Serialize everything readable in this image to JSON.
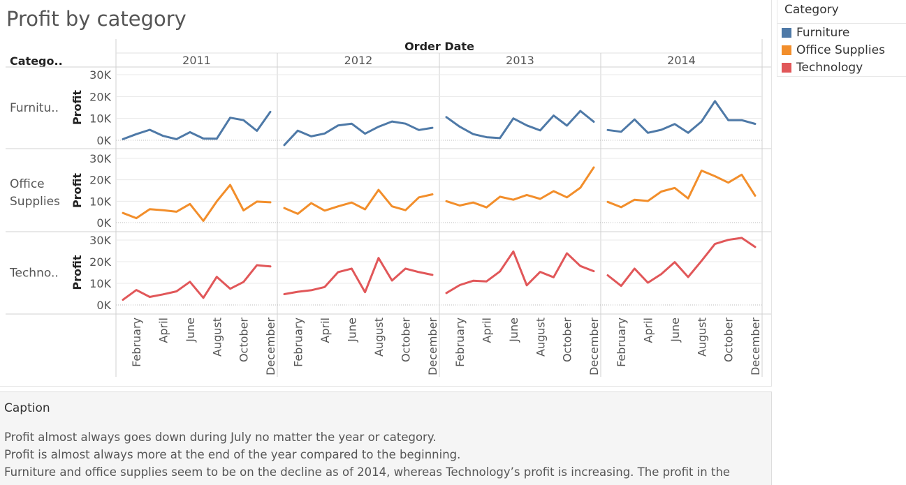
{
  "title": "Profit by category",
  "legend": {
    "title": "Category",
    "items": [
      {
        "label": "Furniture",
        "color": "#4e79a7"
      },
      {
        "label": "Office Supplies",
        "color": "#f28e2b"
      },
      {
        "label": "Technology",
        "color": "#e15759"
      }
    ]
  },
  "caption": {
    "title": "Caption",
    "lines": [
      "Profit almost always goes down during July no matter the year or category.",
      "Profit is almost always more at the end of the year compared to the beginning.",
      "Furniture and office supplies seem to be on the decline as of 2014, whereas Technology’s profit is increasing. The profit in the"
    ]
  },
  "chart_data": {
    "type": "line",
    "title": "Profit by category",
    "column_header": "Order Date",
    "row_header": "Catego..",
    "ylabel": "Profit",
    "ylim": [
      0,
      30000
    ],
    "yticks": [
      "0K",
      "10K",
      "20K",
      "30K"
    ],
    "years": [
      "2011",
      "2012",
      "2013",
      "2014"
    ],
    "months": [
      "January",
      "February",
      "March",
      "April",
      "May",
      "June",
      "July",
      "August",
      "September",
      "October",
      "November",
      "December"
    ],
    "xtick_labels": [
      "February",
      "April",
      "June",
      "August",
      "October",
      "December"
    ],
    "categories": [
      "Furnitu..",
      "Office\nSupplies",
      "Techno.."
    ],
    "series": [
      {
        "name": "Furniture",
        "color": "#4e79a7",
        "values": {
          "2011": [
            500,
            2800,
            4800,
            2000,
            500,
            3700,
            800,
            700,
            10300,
            9200,
            4300,
            13000
          ],
          "2012": [
            -2200,
            4400,
            1800,
            3100,
            6800,
            7600,
            3000,
            6200,
            8600,
            7600,
            4700,
            5700
          ],
          "2013": [
            10600,
            6200,
            2800,
            1400,
            1000,
            10000,
            6800,
            4500,
            11300,
            6700,
            13400,
            8500
          ],
          "2014": [
            4700,
            3900,
            9500,
            3400,
            4800,
            7400,
            3400,
            8600,
            17900,
            9200,
            9200,
            7500
          ]
        }
      },
      {
        "name": "Office Supplies",
        "color": "#f28e2b",
        "values": {
          "2011": [
            4500,
            2100,
            6300,
            5800,
            5100,
            8700,
            800,
            9900,
            17600,
            5700,
            9800,
            9500
          ],
          "2012": [
            6800,
            4100,
            9100,
            5600,
            7600,
            9400,
            6200,
            15300,
            7600,
            5800,
            11800,
            13200
          ],
          "2013": [
            10000,
            8000,
            9400,
            7100,
            12100,
            10700,
            12900,
            11100,
            14700,
            11800,
            16300,
            25800
          ],
          "2014": [
            9700,
            7200,
            10700,
            10100,
            14500,
            16200,
            11300,
            24300,
            21700,
            18700,
            22400,
            12600
          ]
        }
      },
      {
        "name": "Technology",
        "color": "#e15759",
        "values": {
          "2011": [
            2400,
            6900,
            3700,
            4900,
            6300,
            10700,
            3300,
            13000,
            7500,
            10600,
            18400,
            17800
          ],
          "2012": [
            5000,
            6100,
            6800,
            8300,
            15200,
            16800,
            5900,
            21700,
            11300,
            16800,
            15200,
            13900
          ],
          "2013": [
            5500,
            9200,
            11200,
            10900,
            15500,
            24700,
            9100,
            15300,
            12800,
            23900,
            18000,
            15600
          ],
          "2014": [
            13700,
            8800,
            16800,
            10300,
            14300,
            19800,
            12900,
            20400,
            28200,
            30100,
            31000,
            26800
          ]
        }
      }
    ],
    "grid": true
  }
}
